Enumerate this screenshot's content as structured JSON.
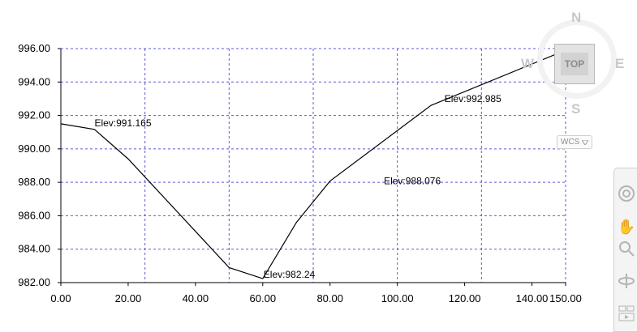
{
  "chart_data": {
    "type": "line",
    "title": "",
    "xlabel": "",
    "ylabel": "",
    "xlim": [
      0,
      150
    ],
    "ylim": [
      982,
      996
    ],
    "x_ticks": [
      0,
      20,
      40,
      60,
      80,
      100,
      120,
      140,
      150
    ],
    "x_tick_labels": [
      "0.00",
      "20.00",
      "40.00",
      "60.00",
      "80.00",
      "100.00",
      "120.00",
      "140.00",
      "150.00"
    ],
    "y_ticks": [
      982,
      984,
      986,
      988,
      990,
      992,
      994,
      996
    ],
    "y_tick_labels": [
      "982.00",
      "984.00",
      "986.00",
      "988.00",
      "990.00",
      "992.00",
      "994.00",
      "996.00"
    ],
    "x_grid": [
      25,
      50,
      75,
      100,
      125,
      150
    ],
    "y_grid": [
      982,
      984,
      986,
      988,
      990,
      992,
      994,
      996
    ],
    "grid": true,
    "series": [
      {
        "x": [
          0,
          10,
          20,
          50,
          60,
          70,
          80,
          110,
          150
        ],
        "y": [
          991.5,
          991.165,
          989.4,
          982.9,
          982.24,
          985.6,
          988.076,
          992.6,
          995.9
        ]
      }
    ],
    "annotations": [
      {
        "text": "Elev:991.165",
        "x": 10,
        "y": 991.165
      },
      {
        "text": "Elev:982.24",
        "x": 60,
        "y": 982.24
      },
      {
        "text": "Elev:988.076",
        "x": 96,
        "y": 988.076
      },
      {
        "text": "Elev:992.985",
        "x": 114,
        "y": 992.985
      }
    ]
  },
  "viewcube": {
    "north": "N",
    "south": "S",
    "west": "W",
    "east": "E",
    "face": "TOP",
    "coord_system": "WCS"
  },
  "navbar": {
    "icons": [
      "steering-wheel-icon",
      "pan-icon",
      "zoom-icon",
      "orbit-icon",
      "showmotion-icon"
    ]
  }
}
